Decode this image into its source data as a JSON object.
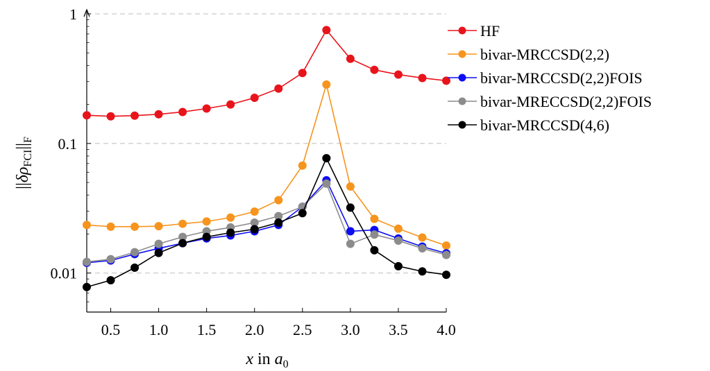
{
  "chart_data": {
    "type": "line",
    "xlabel": "x in a0",
    "ylabel": "||δρFCI||F",
    "xlim": [
      0.25,
      4.0
    ],
    "ylim": [
      0.005,
      1
    ],
    "y_scale": "log",
    "grid": "horizontal dashed",
    "legend_position": "right",
    "x_ticks": [
      "0.5",
      "1.0",
      "1.5",
      "2.0",
      "2.5",
      "3.0",
      "3.5",
      "4.0"
    ],
    "x_tick_values": [
      0.5,
      1.0,
      1.5,
      2.0,
      2.5,
      3.0,
      3.5,
      4.0
    ],
    "y_ticks": [
      "0.01",
      "0.1",
      "1"
    ],
    "y_tick_values": [
      0.01,
      0.1,
      1
    ],
    "x": [
      0.25,
      0.5,
      0.75,
      1.0,
      1.25,
      1.5,
      1.75,
      2.0,
      2.25,
      2.5,
      2.75,
      3.0,
      3.25,
      3.5,
      3.75,
      4.0
    ],
    "series": [
      {
        "name": "HF",
        "color": "#e8141b",
        "values": [
          0.165,
          0.162,
          0.164,
          0.168,
          0.175,
          0.186,
          0.2,
          0.225,
          0.265,
          0.35,
          0.75,
          0.45,
          0.37,
          0.34,
          0.32,
          0.305
        ]
      },
      {
        "name": "bivar-MRCCSD(2,2)",
        "color": "#f7941d",
        "values": [
          0.0235,
          0.0228,
          0.0228,
          0.023,
          0.024,
          0.025,
          0.0268,
          0.0298,
          0.0365,
          0.0675,
          0.285,
          0.0465,
          0.0262,
          0.022,
          0.0188,
          0.0163
        ]
      },
      {
        "name": "bivar-MRCCSD(2,2)FOIS",
        "color": "#0d0df2",
        "values": [
          0.012,
          0.0125,
          0.014,
          0.0155,
          0.017,
          0.0185,
          0.0195,
          0.021,
          0.0235,
          0.0325,
          0.052,
          0.021,
          0.0215,
          0.0185,
          0.016,
          0.0142
        ]
      },
      {
        "name": "bivar-MRECCSD(2,2)FOIS",
        "color": "#8c8c8c",
        "values": [
          0.0122,
          0.0128,
          0.0145,
          0.0168,
          0.019,
          0.021,
          0.0225,
          0.0245,
          0.0275,
          0.0325,
          0.049,
          0.0168,
          0.0198,
          0.0178,
          0.0155,
          0.0138
        ]
      },
      {
        "name": "bivar-MRCCSD(4,6)",
        "color": "#000000",
        "values": [
          0.0078,
          0.0088,
          0.011,
          0.0143,
          0.017,
          0.019,
          0.0205,
          0.0218,
          0.0245,
          0.029,
          0.077,
          0.032,
          0.015,
          0.0113,
          0.0103,
          0.0097
        ]
      }
    ]
  }
}
